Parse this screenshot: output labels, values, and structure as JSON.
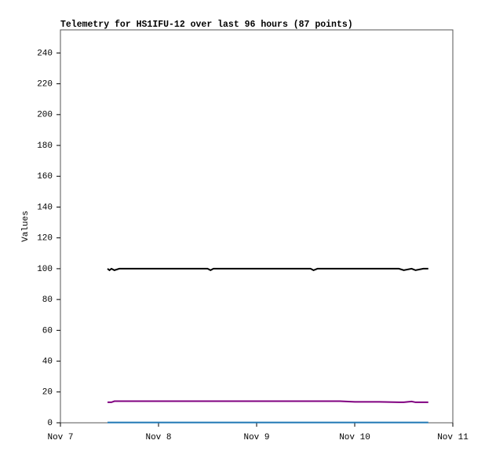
{
  "chart_data": {
    "type": "line",
    "title": "Telemetry for HS1IFU-12 over last 96 hours (87 points)",
    "y_label": "Values",
    "x": [
      7.48,
      7.5,
      7.52,
      7.55,
      7.6,
      7.8,
      8.0,
      8.2,
      8.5,
      8.53,
      8.56,
      8.8,
      9.0,
      9.3,
      9.55,
      9.58,
      9.62,
      9.85,
      10.0,
      10.25,
      10.45,
      10.5,
      10.58,
      10.62,
      10.7,
      10.75
    ],
    "series": [
      {
        "color": "#000000",
        "values": [
          100,
          99,
          100,
          99,
          100,
          100,
          100,
          100,
          100,
          99,
          100,
          100,
          100,
          100,
          100,
          99,
          100,
          100,
          100,
          100,
          100,
          99,
          100,
          99,
          100,
          100
        ]
      },
      {
        "color": "#800080",
        "values": [
          13.3,
          13.3,
          13.3,
          14,
          14,
          14,
          14,
          14,
          14,
          14,
          14,
          14,
          14,
          14,
          14,
          14,
          14,
          14,
          13.6,
          13.6,
          13.3,
          13.3,
          13.8,
          13.3,
          13.3,
          13.3
        ]
      },
      {
        "color": "#1f77b4",
        "values": [
          0.2,
          0.2,
          0.2,
          0.2,
          0.2,
          0.2,
          0.2,
          0.2,
          0.2,
          0.2,
          0.2,
          0.2,
          0.2,
          0.2,
          0.2,
          0.2,
          0.2,
          0.2,
          0.2,
          0.2,
          0.2,
          0.2,
          0.2,
          0.2,
          0.2,
          0.2
        ]
      }
    ],
    "xlim": [
      7,
      11
    ],
    "xticks": [
      {
        "value": 7,
        "label": "Nov 7"
      },
      {
        "value": 8,
        "label": "Nov 8"
      },
      {
        "value": 9,
        "label": "Nov 9"
      },
      {
        "value": 10,
        "label": "Nov 10"
      },
      {
        "value": 11,
        "label": "Nov 11"
      }
    ],
    "ylim": [
      0,
      255
    ],
    "yticks": [
      0,
      20,
      40,
      60,
      80,
      100,
      120,
      140,
      160,
      180,
      200,
      220,
      240
    ],
    "grid": false
  }
}
